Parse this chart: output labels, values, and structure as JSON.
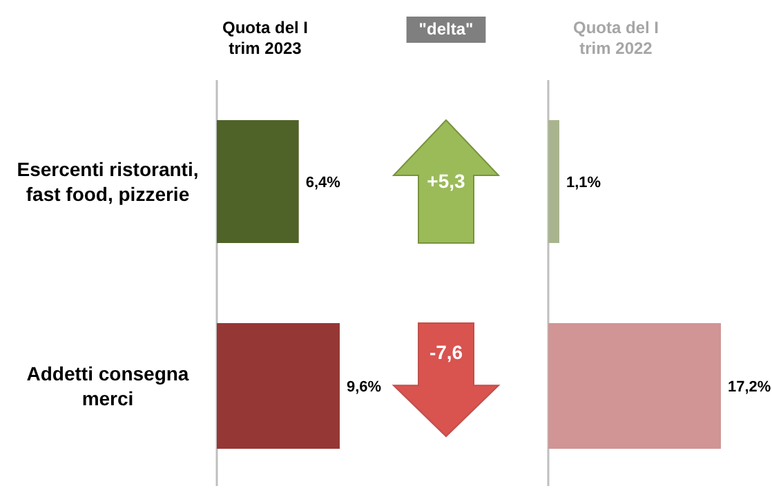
{
  "chart_data": [
    {
      "type": "bar",
      "orientation": "horizontal",
      "title": "Quota del I trim 2023",
      "categories": [
        "Esercenti ristoranti, fast food, pizzerie",
        "Addetti consegna merci"
      ],
      "values": [
        6.4,
        9.6
      ],
      "colors": [
        "#4f6228",
        "#953735"
      ],
      "value_labels": [
        "6,4%",
        "9,6%"
      ]
    },
    {
      "type": "other",
      "title": "\"delta\"",
      "annotations": [
        "+5,3",
        "-7,6"
      ]
    },
    {
      "type": "bar",
      "orientation": "horizontal",
      "title": "Quota del I trim 2022",
      "categories": [
        null,
        null
      ],
      "values": [
        1.1,
        17.2
      ],
      "colors": [
        "#a9b48f",
        "#d09594"
      ],
      "value_labels": [
        "1,1%",
        "17,2%"
      ]
    }
  ]
}
